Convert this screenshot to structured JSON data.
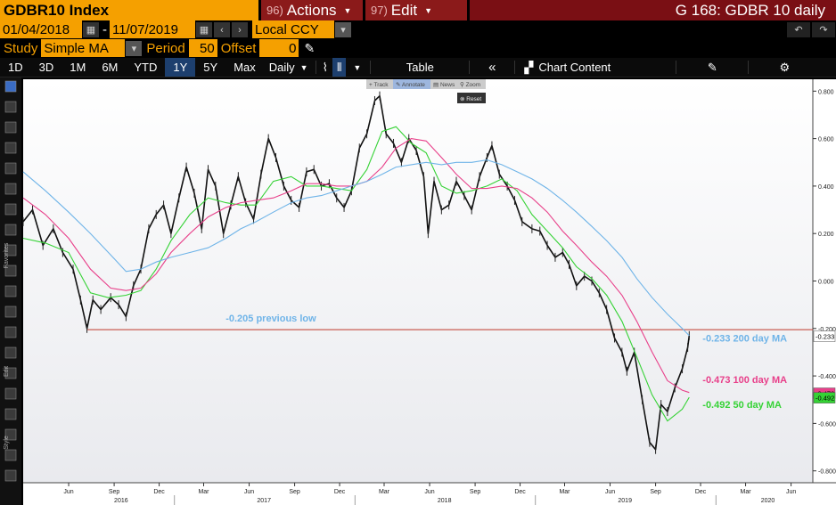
{
  "header": {
    "ticker": "GDBR10 Index",
    "actions_num": "96)",
    "actions_label": "Actions",
    "edit_num": "97)",
    "edit_label": "Edit",
    "page_title": "G 168: GDBR 10 daily"
  },
  "dates": {
    "start": "01/04/2018",
    "separator": "-",
    "end": "11/07/2019",
    "currency": "Local CCY"
  },
  "study": {
    "study_label": "Study",
    "study_value": "Simple MA",
    "period_label": "Period",
    "period_value": "50",
    "offset_label": "Offset",
    "offset_value": "0"
  },
  "toolbar": {
    "ranges": [
      "1D",
      "3D",
      "1M",
      "6M",
      "YTD",
      "1Y",
      "5Y",
      "Max"
    ],
    "active_range": "1Y",
    "frequency": "Daily",
    "table_label": "Table",
    "chart_content_label": "Chart Content"
  },
  "chart_toolbar": {
    "track": "Track",
    "annotate": "Annotate",
    "news": "News",
    "zoom": "Zoom",
    "reset": "Reset"
  },
  "side_labels": {
    "favorites": "Favorites",
    "edit": "Edit",
    "style": "Style",
    "modes": "Modes"
  },
  "colors": {
    "price": "#e6e6e6",
    "ma50": "#35d235",
    "ma100": "#e8408a",
    "ma200": "#6fb4e8",
    "previous_low": "#c0392b",
    "accent": "#f5a000"
  },
  "chart_data": {
    "type": "line",
    "ylim": [
      -0.85,
      0.85
    ],
    "y_ticks": [
      0.8,
      0.6,
      0.4,
      0.2,
      0.0,
      -0.2,
      -0.4,
      -0.6,
      -0.8
    ],
    "y_tick_labels": [
      "0.800",
      "0.600",
      "0.400",
      "0.200",
      "0.000",
      "-0.200",
      "-0.400",
      "-0.600",
      "-0.800"
    ],
    "x_range": [
      "2016-03-01",
      "2020-07-15"
    ],
    "x_months": [
      {
        "d": "2016-06-01",
        "l": "Jun"
      },
      {
        "d": "2016-09-01",
        "l": "Sep"
      },
      {
        "d": "2016-12-01",
        "l": "Dec"
      },
      {
        "d": "2017-03-01",
        "l": "Mar"
      },
      {
        "d": "2017-06-01",
        "l": "Jun"
      },
      {
        "d": "2017-09-01",
        "l": "Sep"
      },
      {
        "d": "2017-12-01",
        "l": "Dec"
      },
      {
        "d": "2018-03-01",
        "l": "Mar"
      },
      {
        "d": "2018-06-01",
        "l": "Jun"
      },
      {
        "d": "2018-09-01",
        "l": "Sep"
      },
      {
        "d": "2018-12-01",
        "l": "Dec"
      },
      {
        "d": "2019-03-01",
        "l": "Mar"
      },
      {
        "d": "2019-06-01",
        "l": "Jun"
      },
      {
        "d": "2019-09-01",
        "l": "Sep"
      },
      {
        "d": "2019-12-01",
        "l": "Dec"
      },
      {
        "d": "2020-03-01",
        "l": "Mar"
      },
      {
        "d": "2020-06-01",
        "l": "Jun"
      }
    ],
    "x_years": [
      {
        "d": "2016-09-15",
        "l": "2016"
      },
      {
        "d": "2017-07-01",
        "l": "2017"
      },
      {
        "d": "2018-07-01",
        "l": "2018"
      },
      {
        "d": "2019-07-01",
        "l": "2019"
      },
      {
        "d": "2020-04-15",
        "l": "2020"
      }
    ],
    "series": [
      {
        "name": "price",
        "points": [
          [
            "2016-03-01",
            0.25
          ],
          [
            "2016-03-20",
            0.3
          ],
          [
            "2016-04-10",
            0.15
          ],
          [
            "2016-05-01",
            0.22
          ],
          [
            "2016-05-20",
            0.12
          ],
          [
            "2016-06-10",
            0.05
          ],
          [
            "2016-06-25",
            -0.08
          ],
          [
            "2016-07-08",
            -0.2
          ],
          [
            "2016-07-20",
            -0.08
          ],
          [
            "2016-08-05",
            -0.12
          ],
          [
            "2016-08-25",
            -0.07
          ],
          [
            "2016-09-10",
            -0.1
          ],
          [
            "2016-09-25",
            -0.15
          ],
          [
            "2016-10-10",
            -0.02
          ],
          [
            "2016-10-25",
            0.05
          ],
          [
            "2016-11-10",
            0.22
          ],
          [
            "2016-11-25",
            0.28
          ],
          [
            "2016-12-10",
            0.32
          ],
          [
            "2016-12-25",
            0.2
          ],
          [
            "2017-01-10",
            0.35
          ],
          [
            "2017-01-25",
            0.48
          ],
          [
            "2017-02-10",
            0.37
          ],
          [
            "2017-02-25",
            0.22
          ],
          [
            "2017-03-10",
            0.47
          ],
          [
            "2017-03-25",
            0.4
          ],
          [
            "2017-04-10",
            0.2
          ],
          [
            "2017-04-25",
            0.32
          ],
          [
            "2017-05-10",
            0.44
          ],
          [
            "2017-05-25",
            0.33
          ],
          [
            "2017-06-10",
            0.26
          ],
          [
            "2017-06-25",
            0.45
          ],
          [
            "2017-07-10",
            0.6
          ],
          [
            "2017-07-25",
            0.52
          ],
          [
            "2017-08-10",
            0.4
          ],
          [
            "2017-08-25",
            0.34
          ],
          [
            "2017-09-10",
            0.31
          ],
          [
            "2017-09-25",
            0.46
          ],
          [
            "2017-10-10",
            0.47
          ],
          [
            "2017-10-25",
            0.4
          ],
          [
            "2017-11-10",
            0.41
          ],
          [
            "2017-11-25",
            0.35
          ],
          [
            "2017-12-10",
            0.31
          ],
          [
            "2017-12-25",
            0.38
          ],
          [
            "2018-01-10",
            0.56
          ],
          [
            "2018-01-25",
            0.62
          ],
          [
            "2018-02-10",
            0.76
          ],
          [
            "2018-02-20",
            0.78
          ],
          [
            "2018-03-05",
            0.62
          ],
          [
            "2018-03-20",
            0.58
          ],
          [
            "2018-04-05",
            0.5
          ],
          [
            "2018-04-20",
            0.6
          ],
          [
            "2018-05-05",
            0.55
          ],
          [
            "2018-05-20",
            0.44
          ],
          [
            "2018-05-29",
            0.2
          ],
          [
            "2018-06-10",
            0.42
          ],
          [
            "2018-06-25",
            0.3
          ],
          [
            "2018-07-10",
            0.32
          ],
          [
            "2018-07-25",
            0.42
          ],
          [
            "2018-08-10",
            0.36
          ],
          [
            "2018-08-25",
            0.3
          ],
          [
            "2018-09-10",
            0.44
          ],
          [
            "2018-09-25",
            0.52
          ],
          [
            "2018-10-05",
            0.57
          ],
          [
            "2018-10-20",
            0.45
          ],
          [
            "2018-11-05",
            0.4
          ],
          [
            "2018-11-20",
            0.34
          ],
          [
            "2018-12-05",
            0.25
          ],
          [
            "2018-12-25",
            0.22
          ],
          [
            "2019-01-10",
            0.21
          ],
          [
            "2019-01-25",
            0.15
          ],
          [
            "2019-02-10",
            0.1
          ],
          [
            "2019-02-25",
            0.12
          ],
          [
            "2019-03-10",
            0.07
          ],
          [
            "2019-03-25",
            -0.02
          ],
          [
            "2019-04-10",
            0.02
          ],
          [
            "2019-04-25",
            0.0
          ],
          [
            "2019-05-10",
            -0.05
          ],
          [
            "2019-05-25",
            -0.12
          ],
          [
            "2019-06-10",
            -0.24
          ],
          [
            "2019-06-25",
            -0.3
          ],
          [
            "2019-07-05",
            -0.38
          ],
          [
            "2019-07-20",
            -0.3
          ],
          [
            "2019-08-05",
            -0.5
          ],
          [
            "2019-08-20",
            -0.68
          ],
          [
            "2019-09-01",
            -0.71
          ],
          [
            "2019-09-12",
            -0.52
          ],
          [
            "2019-09-25",
            -0.55
          ],
          [
            "2019-10-10",
            -0.45
          ],
          [
            "2019-10-25",
            -0.37
          ],
          [
            "2019-11-05",
            -0.28
          ],
          [
            "2019-11-08",
            -0.23
          ]
        ]
      },
      {
        "name": "MA50",
        "points": [
          [
            "2016-03-01",
            0.18
          ],
          [
            "2016-04-15",
            0.16
          ],
          [
            "2016-06-01",
            0.12
          ],
          [
            "2016-07-15",
            -0.05
          ],
          [
            "2016-08-20",
            -0.07
          ],
          [
            "2016-09-25",
            -0.06
          ],
          [
            "2016-10-25",
            -0.04
          ],
          [
            "2016-11-25",
            0.05
          ],
          [
            "2016-12-25",
            0.17
          ],
          [
            "2017-02-01",
            0.28
          ],
          [
            "2017-03-10",
            0.35
          ],
          [
            "2017-04-15",
            0.33
          ],
          [
            "2017-05-15",
            0.32
          ],
          [
            "2017-06-15",
            0.32
          ],
          [
            "2017-07-20",
            0.42
          ],
          [
            "2017-08-25",
            0.44
          ],
          [
            "2017-09-25",
            0.4
          ],
          [
            "2017-10-25",
            0.4
          ],
          [
            "2017-11-25",
            0.39
          ],
          [
            "2017-12-25",
            0.38
          ],
          [
            "2018-01-25",
            0.47
          ],
          [
            "2018-02-25",
            0.63
          ],
          [
            "2018-03-25",
            0.65
          ],
          [
            "2018-04-25",
            0.58
          ],
          [
            "2018-05-25",
            0.54
          ],
          [
            "2018-06-25",
            0.4
          ],
          [
            "2018-07-25",
            0.37
          ],
          [
            "2018-08-25",
            0.38
          ],
          [
            "2018-09-25",
            0.4
          ],
          [
            "2018-10-25",
            0.43
          ],
          [
            "2018-11-25",
            0.38
          ],
          [
            "2018-12-25",
            0.28
          ],
          [
            "2019-01-25",
            0.21
          ],
          [
            "2019-02-25",
            0.14
          ],
          [
            "2019-03-25",
            0.06
          ],
          [
            "2019-04-25",
            0.01
          ],
          [
            "2019-05-25",
            -0.06
          ],
          [
            "2019-06-25",
            -0.17
          ],
          [
            "2019-07-25",
            -0.32
          ],
          [
            "2019-08-25",
            -0.48
          ],
          [
            "2019-09-25",
            -0.59
          ],
          [
            "2019-10-25",
            -0.54
          ],
          [
            "2019-11-08",
            -0.49
          ]
        ]
      },
      {
        "name": "MA100",
        "points": [
          [
            "2016-03-01",
            0.35
          ],
          [
            "2016-04-15",
            0.28
          ],
          [
            "2016-06-01",
            0.18
          ],
          [
            "2016-07-15",
            0.05
          ],
          [
            "2016-08-25",
            -0.03
          ],
          [
            "2016-09-25",
            -0.04
          ],
          [
            "2016-10-25",
            -0.03
          ],
          [
            "2016-11-25",
            0.03
          ],
          [
            "2016-12-25",
            0.12
          ],
          [
            "2017-02-01",
            0.2
          ],
          [
            "2017-03-10",
            0.27
          ],
          [
            "2017-04-15",
            0.31
          ],
          [
            "2017-05-15",
            0.33
          ],
          [
            "2017-06-15",
            0.34
          ],
          [
            "2017-07-20",
            0.35
          ],
          [
            "2017-08-25",
            0.38
          ],
          [
            "2017-09-25",
            0.41
          ],
          [
            "2017-10-25",
            0.41
          ],
          [
            "2017-11-25",
            0.4
          ],
          [
            "2017-12-25",
            0.4
          ],
          [
            "2018-01-25",
            0.42
          ],
          [
            "2018-02-25",
            0.48
          ],
          [
            "2018-03-25",
            0.56
          ],
          [
            "2018-04-25",
            0.6
          ],
          [
            "2018-05-25",
            0.59
          ],
          [
            "2018-06-25",
            0.52
          ],
          [
            "2018-07-25",
            0.45
          ],
          [
            "2018-08-25",
            0.39
          ],
          [
            "2018-09-25",
            0.39
          ],
          [
            "2018-10-25",
            0.4
          ],
          [
            "2018-11-25",
            0.39
          ],
          [
            "2018-12-25",
            0.35
          ],
          [
            "2019-01-25",
            0.29
          ],
          [
            "2019-02-25",
            0.21
          ],
          [
            "2019-03-25",
            0.15
          ],
          [
            "2019-04-25",
            0.08
          ],
          [
            "2019-05-25",
            0.02
          ],
          [
            "2019-06-25",
            -0.06
          ],
          [
            "2019-07-25",
            -0.17
          ],
          [
            "2019-08-25",
            -0.3
          ],
          [
            "2019-09-25",
            -0.42
          ],
          [
            "2019-10-25",
            -0.46
          ],
          [
            "2019-11-08",
            -0.47
          ]
        ]
      },
      {
        "name": "MA200",
        "points": [
          [
            "2016-03-01",
            0.46
          ],
          [
            "2016-04-15",
            0.38
          ],
          [
            "2016-06-01",
            0.29
          ],
          [
            "2016-07-15",
            0.2
          ],
          [
            "2016-08-25",
            0.11
          ],
          [
            "2016-09-25",
            0.04
          ],
          [
            "2016-10-25",
            0.05
          ],
          [
            "2016-11-25",
            0.08
          ],
          [
            "2016-12-25",
            0.1
          ],
          [
            "2017-02-01",
            0.12
          ],
          [
            "2017-03-10",
            0.14
          ],
          [
            "2017-04-15",
            0.18
          ],
          [
            "2017-05-15",
            0.22
          ],
          [
            "2017-06-15",
            0.25
          ],
          [
            "2017-07-20",
            0.29
          ],
          [
            "2017-08-25",
            0.33
          ],
          [
            "2017-09-25",
            0.35
          ],
          [
            "2017-10-25",
            0.36
          ],
          [
            "2017-11-25",
            0.38
          ],
          [
            "2017-12-25",
            0.4
          ],
          [
            "2018-01-25",
            0.42
          ],
          [
            "2018-02-25",
            0.45
          ],
          [
            "2018-03-25",
            0.48
          ],
          [
            "2018-04-25",
            0.49
          ],
          [
            "2018-05-25",
            0.5
          ],
          [
            "2018-06-25",
            0.49
          ],
          [
            "2018-07-25",
            0.5
          ],
          [
            "2018-08-25",
            0.5
          ],
          [
            "2018-09-25",
            0.51
          ],
          [
            "2018-10-25",
            0.49
          ],
          [
            "2018-11-25",
            0.46
          ],
          [
            "2018-12-25",
            0.43
          ],
          [
            "2019-01-25",
            0.39
          ],
          [
            "2019-02-25",
            0.34
          ],
          [
            "2019-03-25",
            0.29
          ],
          [
            "2019-04-25",
            0.23
          ],
          [
            "2019-05-25",
            0.17
          ],
          [
            "2019-06-25",
            0.1
          ],
          [
            "2019-07-25",
            0.01
          ],
          [
            "2019-08-25",
            -0.07
          ],
          [
            "2019-09-25",
            -0.14
          ],
          [
            "2019-10-25",
            -0.2
          ],
          [
            "2019-11-08",
            -0.23
          ]
        ]
      }
    ],
    "horizontal_line": {
      "y": -0.205,
      "from": "2016-07-08"
    },
    "annotations": [
      {
        "text": "-0.205 previous low",
        "x": "2017-07-15",
        "y": -0.17,
        "color": "#6fb4e8"
      },
      {
        "text": "-0.233 200 day MA",
        "x": "2019-12-05",
        "y": -0.255,
        "color": "#6fb4e8"
      },
      {
        "text": "-0.473 100 day MA",
        "x": "2019-12-05",
        "y": -0.43,
        "color": "#e8408a"
      },
      {
        "text": "-0.492 50 day MA",
        "x": "2019-12-05",
        "y": -0.535,
        "color": "#35d235"
      }
    ],
    "right_badges": [
      {
        "text": "-0.233",
        "y": -0.233,
        "bg": "#ffffff",
        "fg": "#000000"
      },
      {
        "text": "-0.473",
        "y": -0.473,
        "bg": "#e8408a",
        "fg": "#000000"
      },
      {
        "text": "-0.492",
        "y": -0.492,
        "bg": "#35d235",
        "fg": "#000000"
      }
    ]
  }
}
